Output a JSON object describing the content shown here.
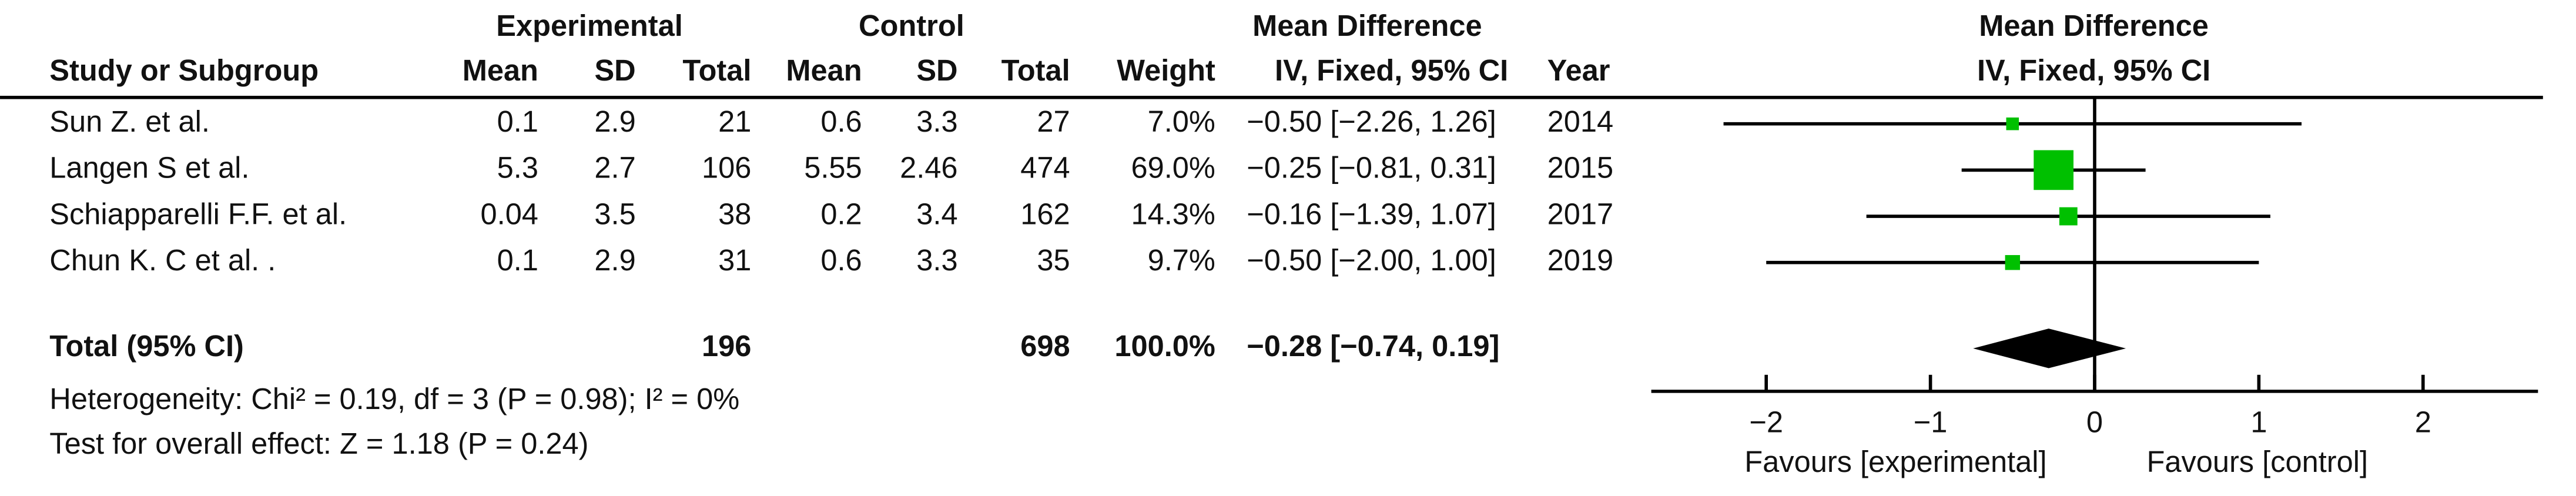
{
  "chart_data": {
    "type": "forest",
    "group_headers": [
      "Experimental",
      "Control",
      "Mean Difference"
    ],
    "column_headers": [
      "Study or Subgroup",
      "Mean",
      "SD",
      "Total",
      "Mean",
      "SD",
      "Total",
      "Weight",
      "IV, Fixed, 95% CI",
      "Year"
    ],
    "plot_title": "Mean Difference",
    "plot_subtitle": "IV, Fixed, 95% CI",
    "rows": [
      [
        "Sun Z. et al.",
        "0.1",
        "2.9",
        "21",
        "0.6",
        "3.3",
        "27"
      ],
      [
        "Langen S et al.",
        "5.3",
        "2.7",
        "106",
        "5.55",
        "2.46",
        "474"
      ],
      [
        "Schiapparelli F.F. et al.",
        "0.04",
        "3.5",
        "38",
        "0.2",
        "3.4",
        "162"
      ],
      [
        "Chun K. C et al. .",
        "0.1",
        "2.9",
        "31",
        "0.6",
        "3.3",
        "35"
      ]
    ],
    "weights": [
      7.0,
      69.0,
      14.3,
      9.7
    ],
    "weight_labels": [
      "7.0%",
      "69.0%",
      "14.3%",
      "9.7%"
    ],
    "values": [
      -0.5,
      -0.25,
      -0.16,
      -0.5
    ],
    "ci_low": [
      -2.26,
      -0.81,
      -1.39,
      -2.0
    ],
    "ci_high": [
      1.26,
      0.31,
      1.07,
      1.0
    ],
    "value_labels": [
      "−0.50 [−2.26, 1.26]",
      "−0.25 [−0.81, 0.31]",
      "−0.16 [−1.39, 1.07]",
      "−0.50 [−2.00, 1.00]"
    ],
    "years": [
      "2014",
      "2015",
      "2017",
      "2019"
    ],
    "total": {
      "label": "Total (95% CI)",
      "exp_total": "196",
      "ctl_total": "698",
      "weight_label": "100.0%",
      "value": -0.28,
      "ci_low": -0.74,
      "ci_high": 0.19,
      "value_label": "−0.28 [−0.74, 0.19]"
    },
    "heterogeneity": "Heterogeneity: Chi² = 0.19, df = 3 (P = 0.98); I² = 0%",
    "overall_effect": "Test for overall effect: Z = 1.18 (P = 0.24)",
    "xlim": [
      -2.7,
      2.7
    ],
    "xticks": [
      {
        "value": -2,
        "label": "−2"
      },
      {
        "value": -1,
        "label": "−1"
      },
      0,
      1,
      2
    ],
    "x_labels": [
      "Favours [experimental]",
      "Favours [control]"
    ],
    "color": "#00c000",
    "diamond_color": "#000000"
  }
}
